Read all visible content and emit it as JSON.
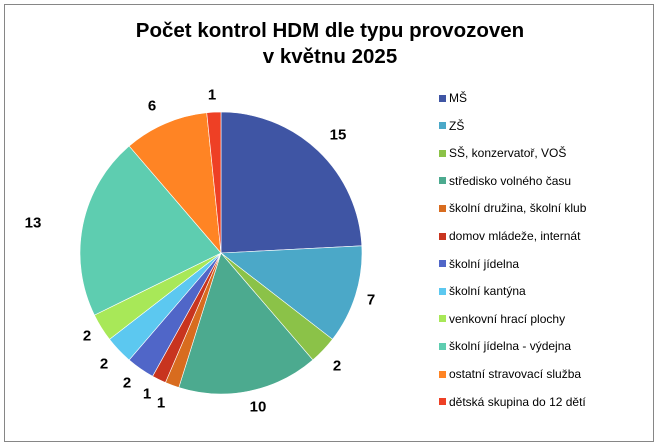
{
  "chart_data": {
    "type": "pie",
    "title": "Počet kontrol HDM dle typu provozoven v květnu 2025",
    "title_lines": [
      "Počet kontrol HDM dle typu provozoven",
      "v květnu 2025"
    ],
    "categories": [
      "MŠ",
      "ZŠ",
      "SŠ, konzervatoř, VOŠ",
      "středisko volného času",
      "školní družina, školní klub",
      "domov mládeže, internát",
      "školní jídelna",
      "školní kantýna",
      "venkovní hrací plochy",
      "školní jídelna - výdejna",
      "ostatní stravovací služba",
      "dětská skupina do 12 dětí"
    ],
    "values": [
      15,
      7,
      2,
      10,
      1,
      1,
      2,
      2,
      2,
      13,
      6,
      1
    ],
    "colors": [
      "#3F55A4",
      "#4BA8C8",
      "#8BC248",
      "#4CAA8F",
      "#D86C1F",
      "#C8341F",
      "#5066C8",
      "#5CC8F0",
      "#A8E858",
      "#5ECDB0",
      "#FF8424",
      "#EE4025"
    ],
    "data_labels": [
      "15",
      "7",
      "2",
      "10",
      "1",
      "1",
      "2",
      "2",
      "2",
      "13",
      "6",
      "1"
    ],
    "legend_position": "right",
    "start_angle_deg": 0,
    "direction": "clockwise"
  },
  "title": {
    "line1": "Počet kontrol HDM dle typu provozoven",
    "line2": "v květnu 2025"
  }
}
